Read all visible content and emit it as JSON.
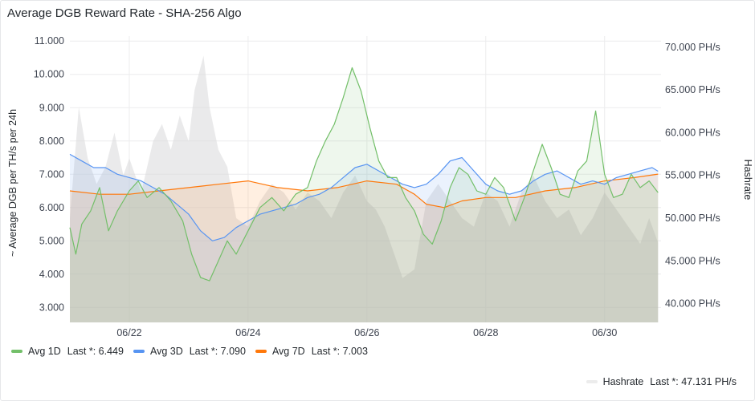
{
  "panel": {
    "title": "Average DGB Reward Rate - SHA-256 Algo"
  },
  "chart_data": {
    "type": "line",
    "x_axis": {
      "tick_labels": [
        "06/22",
        "06/24",
        "06/26",
        "06/28",
        "06/30"
      ],
      "tick_positions_days": [
        1.0,
        3.0,
        5.0,
        7.0,
        9.0
      ],
      "range_days": [
        0.0,
        9.95
      ]
    },
    "y_left": {
      "label": "~ Average DGB per TH/s per 24h",
      "ticks": [
        "3.000",
        "4.000",
        "5.000",
        "6.000",
        "7.000",
        "8.000",
        "9.000",
        "10.000",
        "11.000"
      ],
      "tick_values": [
        3,
        4,
        5,
        6,
        7,
        8,
        9,
        10,
        11
      ],
      "range": [
        2.55,
        11.15
      ]
    },
    "y_right": {
      "label": "Hashrate",
      "ticks": [
        "40.000 PH/s",
        "45.000 PH/s",
        "50.000 PH/s",
        "55.000 PH/s",
        "60.000 PH/s",
        "65.000 PH/s",
        "70.000 PH/s"
      ],
      "tick_values": [
        40,
        45,
        50,
        55,
        60,
        65,
        70
      ],
      "range": [
        37.8,
        71.3
      ]
    },
    "grid": true,
    "series": [
      {
        "name": "Avg 1D",
        "axis": "left",
        "color": "#73bf69",
        "fill": "#73bf69",
        "stat_label": "Last *: 6.449",
        "x": [
          0,
          0.1,
          0.2,
          0.35,
          0.5,
          0.65,
          0.8,
          1.0,
          1.15,
          1.3,
          1.5,
          1.7,
          1.9,
          2.05,
          2.2,
          2.35,
          2.5,
          2.65,
          2.8,
          3.0,
          3.2,
          3.4,
          3.6,
          3.8,
          4.0,
          4.15,
          4.3,
          4.45,
          4.6,
          4.75,
          4.9,
          5.05,
          5.2,
          5.35,
          5.5,
          5.65,
          5.8,
          5.95,
          6.1,
          6.25,
          6.4,
          6.55,
          6.7,
          6.85,
          7.0,
          7.15,
          7.3,
          7.5,
          7.65,
          7.8,
          7.95,
          8.1,
          8.25,
          8.4,
          8.55,
          8.7,
          8.85,
          9.0,
          9.15,
          9.3,
          9.45,
          9.6,
          9.75,
          9.9
        ],
        "y": [
          5.4,
          4.6,
          5.5,
          5.9,
          6.6,
          5.3,
          5.9,
          6.5,
          6.8,
          6.3,
          6.6,
          6.2,
          5.6,
          4.6,
          3.9,
          3.8,
          4.4,
          5.0,
          4.6,
          5.3,
          6.0,
          6.3,
          5.9,
          6.4,
          6.6,
          7.4,
          8.0,
          8.5,
          9.3,
          10.2,
          9.5,
          8.4,
          7.4,
          6.9,
          6.9,
          6.3,
          5.9,
          5.2,
          4.9,
          5.6,
          6.6,
          7.2,
          7.0,
          6.5,
          6.4,
          6.9,
          6.6,
          5.6,
          6.3,
          7.1,
          7.9,
          7.2,
          6.4,
          6.3,
          7.1,
          7.4,
          8.9,
          7.0,
          6.3,
          6.4,
          7.0,
          6.6,
          6.8,
          6.449
        ]
      },
      {
        "name": "Avg 3D",
        "axis": "left",
        "color": "#5794f2",
        "fill": "#5794f2",
        "stat_label": "Last *: 7.090",
        "x": [
          0,
          0.2,
          0.4,
          0.6,
          0.8,
          1.0,
          1.2,
          1.4,
          1.6,
          1.8,
          2.0,
          2.2,
          2.4,
          2.6,
          2.8,
          3.0,
          3.2,
          3.4,
          3.6,
          3.8,
          4.0,
          4.2,
          4.4,
          4.6,
          4.8,
          5.0,
          5.2,
          5.4,
          5.6,
          5.8,
          6.0,
          6.2,
          6.4,
          6.6,
          6.8,
          7.0,
          7.2,
          7.4,
          7.6,
          7.8,
          8.0,
          8.2,
          8.4,
          8.6,
          8.8,
          9.0,
          9.2,
          9.4,
          9.6,
          9.8,
          9.9
        ],
        "y": [
          7.6,
          7.4,
          7.2,
          7.2,
          7.0,
          6.9,
          6.8,
          6.6,
          6.4,
          6.1,
          5.8,
          5.3,
          5.0,
          5.1,
          5.4,
          5.6,
          5.8,
          5.9,
          6.0,
          6.1,
          6.3,
          6.4,
          6.6,
          6.9,
          7.2,
          7.3,
          7.1,
          6.9,
          6.7,
          6.6,
          6.7,
          7.0,
          7.4,
          7.5,
          7.1,
          6.7,
          6.5,
          6.4,
          6.5,
          6.8,
          7.0,
          7.1,
          6.9,
          6.7,
          6.8,
          6.7,
          6.9,
          7.0,
          7.1,
          7.2,
          7.09
        ]
      },
      {
        "name": "Avg 7D",
        "axis": "left",
        "color": "#ff780a",
        "fill": "#ff780a",
        "stat_label": "Last *: 7.003",
        "x": [
          0,
          0.5,
          1.0,
          1.5,
          2.0,
          2.5,
          3.0,
          3.5,
          4.0,
          4.5,
          5.0,
          5.5,
          5.8,
          6.0,
          6.3,
          6.6,
          7.0,
          7.5,
          8.0,
          8.5,
          9.0,
          9.5,
          9.9
        ],
        "y": [
          6.5,
          6.4,
          6.4,
          6.5,
          6.6,
          6.7,
          6.8,
          6.6,
          6.5,
          6.6,
          6.8,
          6.7,
          6.4,
          6.1,
          6.0,
          6.2,
          6.3,
          6.3,
          6.5,
          6.6,
          6.8,
          6.9,
          7.003
        ]
      },
      {
        "name": "Hashrate",
        "axis": "right",
        "color": "#d8d9da",
        "fill": "#d8d9da",
        "stat_label": "Last *: 47.131 PH/s",
        "x": [
          0,
          0.15,
          0.2,
          0.3,
          0.45,
          0.6,
          0.75,
          0.9,
          1.0,
          1.2,
          1.4,
          1.55,
          1.7,
          1.85,
          2.0,
          2.1,
          2.25,
          2.35,
          2.5,
          2.65,
          2.8,
          3.0,
          3.2,
          3.4,
          3.6,
          3.8,
          4.0,
          4.2,
          4.4,
          4.6,
          4.8,
          5.0,
          5.15,
          5.3,
          5.45,
          5.6,
          5.8,
          6.0,
          6.2,
          6.4,
          6.6,
          6.8,
          7.0,
          7.2,
          7.4,
          7.6,
          7.8,
          8.0,
          8.2,
          8.4,
          8.6,
          8.8,
          9.0,
          9.2,
          9.4,
          9.6,
          9.75,
          9.9
        ],
        "y": [
          50,
          63,
          61,
          57,
          54,
          56,
          60,
          55,
          57,
          53,
          59,
          61,
          58,
          62,
          59,
          65,
          69,
          63,
          58,
          56,
          50,
          49,
          52,
          54,
          53,
          51,
          53,
          52,
          50,
          53,
          55,
          52,
          51,
          49,
          46,
          43,
          44,
          52,
          54,
          52,
          50,
          49,
          53,
          52,
          49,
          53,
          55,
          52,
          50,
          51,
          48,
          50,
          53,
          51,
          49,
          47,
          50,
          47.131
        ]
      }
    ]
  }
}
